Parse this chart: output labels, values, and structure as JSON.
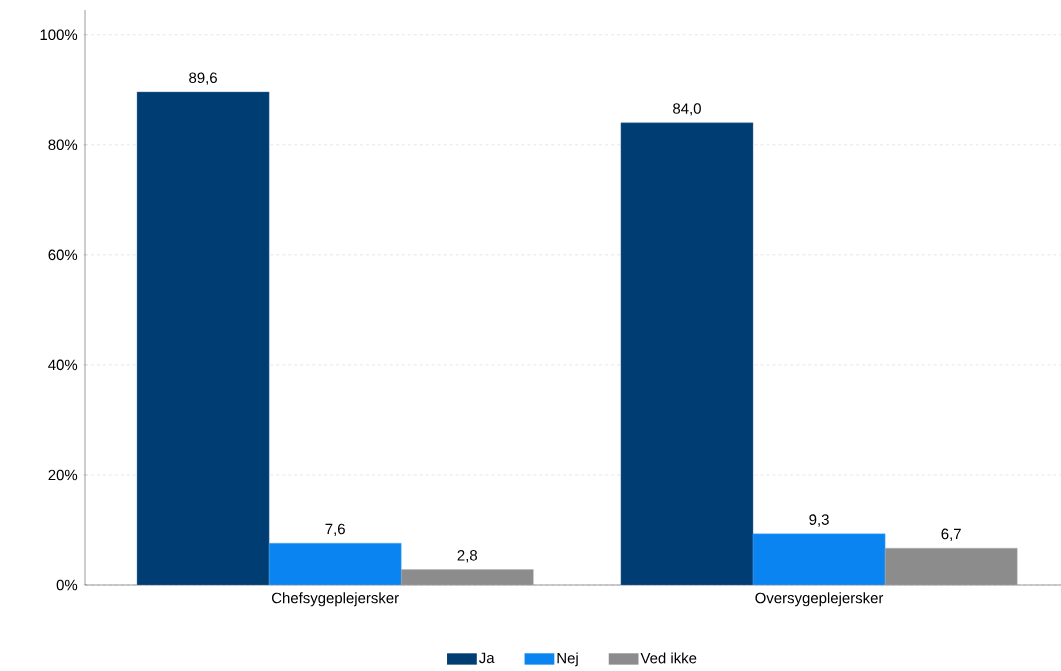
{
  "chart_data": {
    "type": "bar",
    "categories": [
      "Chefsygeplejersker",
      "Oversygeplejersker"
    ],
    "series": [
      {
        "name": "Ja",
        "color": "#003d73",
        "values": [
          89.6,
          84.0
        ],
        "value_labels": [
          "89,6",
          "84,0"
        ]
      },
      {
        "name": "Nej",
        "color": "#0a84f0",
        "values": [
          7.6,
          9.3
        ],
        "value_labels": [
          "7,6",
          "9,3"
        ]
      },
      {
        "name": "Ved ikke",
        "color": "#8c8c8c",
        "values": [
          2.8,
          6.7
        ],
        "value_labels": [
          "2,8",
          "6,7"
        ]
      }
    ],
    "ylim": [
      0,
      104.5
    ],
    "yticks": [
      {
        "value": 0,
        "label": "0%"
      },
      {
        "value": 20,
        "label": "20%"
      },
      {
        "value": 40,
        "label": "40%"
      },
      {
        "value": 60,
        "label": "60%"
      },
      {
        "value": 80,
        "label": "80%"
      },
      {
        "value": 100,
        "label": "100%"
      }
    ],
    "grid": "y",
    "legend": "bottom"
  }
}
